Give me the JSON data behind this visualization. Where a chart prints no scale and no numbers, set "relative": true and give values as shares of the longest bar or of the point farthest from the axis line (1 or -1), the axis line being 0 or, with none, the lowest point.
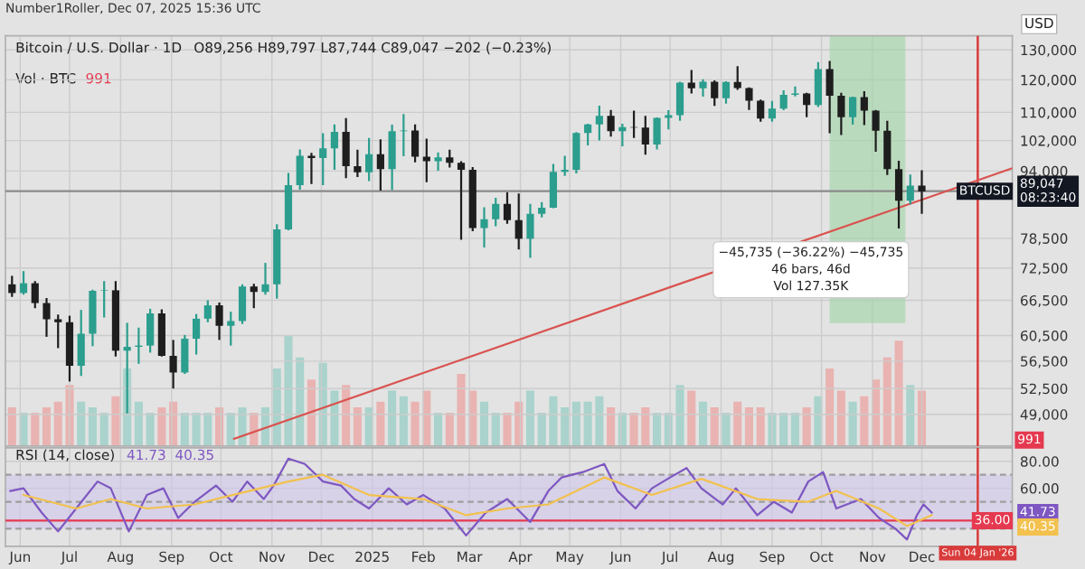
{
  "chart_data": [
    {
      "type": "candlestick",
      "title": "Bitcoin / U.S. Dollar · 1D",
      "subtitle": "O89,256 H89,797 L87,744 C89,047 −202 (−0.23%)",
      "ylabel": "USD",
      "log": true,
      "grid": true,
      "tick_labels": "y",
      "xlim": [
        "2024-05-23",
        "2026-01-25"
      ],
      "xticks": [
        "2024-06-01",
        "2024-07-01",
        "2024-08-01",
        "2024-09-01",
        "2024-10-01",
        "2024-11-01",
        "2024-12-01",
        "2025-01-01",
        "2025-02-01",
        "2025-03-01",
        "2025-04-01",
        "2025-05-01",
        "2025-06-01",
        "2025-07-01",
        "2025-08-01",
        "2025-09-01",
        "2025-10-01",
        "2025-11-01",
        "2025-12-01"
      ],
      "ylim": [
        45000,
        135000
      ],
      "yticks": [
        {
          "value": 49000,
          "label": "49,000"
        },
        {
          "value": 52500,
          "label": "52,500"
        },
        {
          "value": 56500,
          "label": "56,500"
        },
        {
          "value": 60500,
          "label": "60,500"
        },
        {
          "value": 66500,
          "label": "66,500"
        },
        {
          "value": 72500,
          "label": "72,500"
        },
        {
          "value": 78500,
          "label": "78,500"
        },
        {
          "value": 94000,
          "label": "94,000"
        },
        {
          "value": 102000,
          "label": "102,000"
        },
        {
          "value": 110000,
          "label": "110,000"
        },
        {
          "value": 120000,
          "label": "120,000"
        },
        {
          "value": 130000,
          "label": "130,000"
        }
      ],
      "x": [
        "2024-05-27",
        "2024-06-03",
        "2024-06-10",
        "2024-06-17",
        "2024-06-24",
        "2024-07-01",
        "2024-07-08",
        "2024-07-15",
        "2024-07-22",
        "2024-07-29",
        "2024-08-05",
        "2024-08-12",
        "2024-08-19",
        "2024-08-26",
        "2024-09-02",
        "2024-09-09",
        "2024-09-16",
        "2024-09-23",
        "2024-09-30",
        "2024-10-07",
        "2024-10-14",
        "2024-10-21",
        "2024-10-28",
        "2024-11-04",
        "2024-11-11",
        "2024-11-18",
        "2024-11-25",
        "2024-12-02",
        "2024-12-09",
        "2024-12-16",
        "2024-12-23",
        "2024-12-30",
        "2025-01-06",
        "2025-01-13",
        "2025-01-20",
        "2025-01-27",
        "2025-02-03",
        "2025-02-10",
        "2025-02-17",
        "2025-02-24",
        "2025-03-03",
        "2025-03-10",
        "2025-03-17",
        "2025-03-24",
        "2025-03-31",
        "2025-04-07",
        "2025-04-14",
        "2025-04-21",
        "2025-04-28",
        "2025-05-05",
        "2025-05-12",
        "2025-05-19",
        "2025-05-26",
        "2025-06-02",
        "2025-06-09",
        "2025-06-16",
        "2025-06-23",
        "2025-06-30",
        "2025-07-07",
        "2025-07-14",
        "2025-07-21",
        "2025-07-28",
        "2025-08-04",
        "2025-08-11",
        "2025-08-18",
        "2025-08-25",
        "2025-09-01",
        "2025-09-08",
        "2025-09-15",
        "2025-09-22",
        "2025-09-29",
        "2025-10-06",
        "2025-10-13",
        "2025-10-20",
        "2025-10-27",
        "2025-11-03",
        "2025-11-10",
        "2025-11-17",
        "2025-11-24",
        "2025-12-01"
      ],
      "ohlc": [
        [
          69400,
          71000,
          67100,
          67800
        ],
        [
          67800,
          71900,
          67500,
          69600
        ],
        [
          69600,
          70000,
          65100,
          66000
        ],
        [
          66000,
          66900,
          60300,
          63200
        ],
        [
          63200,
          64000,
          58500,
          62700
        ],
        [
          62700,
          63800,
          53500,
          55800
        ],
        [
          55800,
          64800,
          54300,
          60800
        ],
        [
          60800,
          68400,
          58800,
          68200
        ],
        [
          68200,
          70000,
          63500,
          68300
        ],
        [
          68300,
          70000,
          57200,
          58100
        ],
        [
          58100,
          62600,
          49100,
          58700
        ],
        [
          58700,
          61800,
          56100,
          58900
        ],
        [
          58900,
          65000,
          57800,
          64200
        ],
        [
          64200,
          64900,
          57200,
          57300
        ],
        [
          57300,
          59800,
          52500,
          54800
        ],
        [
          54800,
          60600,
          54600,
          60000
        ],
        [
          60000,
          64100,
          57500,
          63300
        ],
        [
          63300,
          66500,
          62700,
          65600
        ],
        [
          65600,
          66100,
          59800,
          62100
        ],
        [
          62100,
          64500,
          58900,
          62900
        ],
        [
          62900,
          69400,
          62400,
          69000
        ],
        [
          69000,
          69500,
          65100,
          68000
        ],
        [
          68000,
          73500,
          67500,
          69400
        ],
        [
          69400,
          81500,
          66800,
          80400
        ],
        [
          80400,
          93500,
          80200,
          90500
        ],
        [
          90500,
          99600,
          89400,
          97900
        ],
        [
          97900,
          98700,
          90800,
          97300
        ],
        [
          97300,
          104000,
          90500,
          99900
        ],
        [
          99900,
          106500,
          94300,
          104400
        ],
        [
          104400,
          108300,
          92200,
          95200
        ],
        [
          95200,
          99500,
          92500,
          93700
        ],
        [
          93700,
          102700,
          91500,
          98300
        ],
        [
          98300,
          102300,
          89200,
          94500
        ],
        [
          94500,
          106400,
          89300,
          104600
        ],
        [
          104600,
          109500,
          97800,
          104800
        ],
        [
          104800,
          106500,
          96200,
          97700
        ],
        [
          97700,
          102500,
          91200,
          96500
        ],
        [
          96500,
          98800,
          94100,
          97500
        ],
        [
          97500,
          99500,
          94900,
          96100
        ],
        [
          96100,
          96500,
          78200,
          94300
        ],
        [
          94300,
          95000,
          80000,
          80700
        ],
        [
          80700,
          85300,
          76600,
          82600
        ],
        [
          82600,
          87500,
          81100,
          86100
        ],
        [
          86100,
          88800,
          81600,
          82400
        ],
        [
          82400,
          88500,
          76200,
          78400
        ],
        [
          78400,
          86100,
          74500,
          83800
        ],
        [
          83800,
          86500,
          83000,
          85200
        ],
        [
          85200,
          95800,
          85100,
          93800
        ],
        [
          93800,
          97900,
          92800,
          94300
        ],
        [
          94300,
          104300,
          93400,
          104100
        ],
        [
          104100,
          106700,
          100700,
          106500
        ],
        [
          106500,
          112000,
          102000,
          109000
        ],
        [
          109000,
          110700,
          103100,
          104600
        ],
        [
          104600,
          106700,
          100400,
          105700
        ],
        [
          105700,
          110500,
          102700,
          105600
        ],
        [
          105600,
          109000,
          98200,
          100900
        ],
        [
          100900,
          108500,
          99600,
          108400
        ],
        [
          108400,
          110600,
          105100,
          109200
        ],
        [
          109200,
          119400,
          107500,
          119100
        ],
        [
          119100,
          123200,
          115700,
          117300
        ],
        [
          117300,
          120200,
          114700,
          119400
        ],
        [
          119400,
          119800,
          111900,
          114200
        ],
        [
          114200,
          119500,
          112600,
          119300
        ],
        [
          119300,
          124500,
          116800,
          117400
        ],
        [
          117400,
          117600,
          110700,
          113500
        ],
        [
          113500,
          113800,
          107300,
          108200
        ],
        [
          108200,
          113400,
          107300,
          111100
        ],
        [
          111100,
          116700,
          110600,
          115300
        ],
        [
          115300,
          117900,
          114800,
          115700
        ],
        [
          115700,
          115900,
          108600,
          112200
        ],
        [
          112200,
          125800,
          111600,
          123500
        ],
        [
          123500,
          126200,
          104000,
          115000
        ],
        [
          115000,
          115900,
          103500,
          108600
        ],
        [
          108600,
          114700,
          106400,
          114600
        ],
        [
          114600,
          116400,
          106300,
          110500
        ],
        [
          110500,
          110700,
          99000,
          104700
        ],
        [
          104700,
          107500,
          93000,
          94500
        ],
        [
          94500,
          96600,
          80600,
          86800
        ],
        [
          86800,
          93100,
          86000,
          90400
        ],
        [
          90400,
          94200,
          83800,
          89000
        ]
      ],
      "colors": [
        "#1e1e1e",
        "#2b9e8e",
        "#1e1e1e",
        "#1e1e1e",
        "#1e1e1e",
        "#1e1e1e",
        "#2b9e8e",
        "#2b9e8e",
        "#2b9e8e",
        "#1e1e1e",
        "#2b9e8e",
        "#2b9e8e",
        "#2b9e8e",
        "#1e1e1e",
        "#1e1e1e",
        "#2b9e8e",
        "#2b9e8e",
        "#2b9e8e",
        "#1e1e1e",
        "#2b9e8e",
        "#2b9e8e",
        "#1e1e1e",
        "#2b9e8e",
        "#2b9e8e",
        "#2b9e8e",
        "#2b9e8e",
        "#1e1e1e",
        "#2b9e8e",
        "#2b9e8e",
        "#1e1e1e",
        "#1e1e1e",
        "#2b9e8e",
        "#1e1e1e",
        "#2b9e8e",
        "#2b9e8e",
        "#1e1e1e",
        "#1e1e1e",
        "#2b9e8e",
        "#1e1e1e",
        "#1e1e1e",
        "#1e1e1e",
        "#2b9e8e",
        "#2b9e8e",
        "#1e1e1e",
        "#1e1e1e",
        "#2b9e8e",
        "#2b9e8e",
        "#2b9e8e",
        "#2b9e8e",
        "#2b9e8e",
        "#2b9e8e",
        "#2b9e8e",
        "#1e1e1e",
        "#2b9e8e",
        "#1e1e1e",
        "#1e1e1e",
        "#2b9e8e",
        "#2b9e8e",
        "#2b9e8e",
        "#1e1e1e",
        "#2b9e8e",
        "#1e1e1e",
        "#2b9e8e",
        "#1e1e1e",
        "#1e1e1e",
        "#1e1e1e",
        "#2b9e8e",
        "#2b9e8e",
        "#2b9e8e",
        "#1e1e1e",
        "#2b9e8e",
        "#1e1e1e",
        "#1e1e1e",
        "#2b9e8e",
        "#1e1e1e",
        "#1e1e1e",
        "#1e1e1e",
        "#1e1e1e",
        "#2b9e8e",
        "#1e1e1e"
      ],
      "series": [
        {
          "type": "line",
          "color": "#d9534f",
          "x": [
            "2024-10-09",
            "2026-01-25"
          ],
          "values": [
            45900,
            94700
          ]
        }
      ],
      "ref_lines": [
        {
          "axis": "y",
          "value": 89047,
          "label": "BTCUSD",
          "color": "#8a8a8a"
        },
        {
          "axis": "x",
          "value": "2026-01-04",
          "color": "#d93a3a"
        }
      ],
      "bands": [
        {
          "axis": "x",
          "from": "2025-10-06",
          "to": "2025-11-21",
          "color": "#9fd3a4"
        }
      ],
      "annotations": [
        "Number1Roller, Dec 07, 2025 15:36 UTC",
        "−45,735 (−36.22%) −45,735\n46 bars, 46d\nVol 127.35K",
        "89,047\n08:23:40"
      ]
    },
    {
      "type": "bar",
      "title": "Vol · BTC",
      "relative": true,
      "tick_labels": false,
      "x": [
        "2024-05-27",
        "2024-06-03",
        "2024-06-10",
        "2024-06-17",
        "2024-06-24",
        "2024-07-01",
        "2024-07-08",
        "2024-07-15",
        "2024-07-22",
        "2024-07-29",
        "2024-08-05",
        "2024-08-12",
        "2024-08-19",
        "2024-08-26",
        "2024-09-02",
        "2024-09-09",
        "2024-09-16",
        "2024-09-23",
        "2024-09-30",
        "2024-10-07",
        "2024-10-14",
        "2024-10-21",
        "2024-10-28",
        "2024-11-04",
        "2024-11-11",
        "2024-11-18",
        "2024-11-25",
        "2024-12-02",
        "2024-12-09",
        "2024-12-16",
        "2024-12-23",
        "2024-12-30",
        "2025-01-06",
        "2025-01-13",
        "2025-01-20",
        "2025-01-27",
        "2025-02-03",
        "2025-02-10",
        "2025-02-17",
        "2025-02-24",
        "2025-03-03",
        "2025-03-10",
        "2025-03-17",
        "2025-03-24",
        "2025-03-31",
        "2025-04-07",
        "2025-04-14",
        "2025-04-21",
        "2025-04-28",
        "2025-05-05",
        "2025-05-12",
        "2025-05-19",
        "2025-05-26",
        "2025-06-02",
        "2025-06-09",
        "2025-06-16",
        "2025-06-23",
        "2025-06-30",
        "2025-07-07",
        "2025-07-14",
        "2025-07-21",
        "2025-07-28",
        "2025-08-04",
        "2025-08-11",
        "2025-08-18",
        "2025-08-25",
        "2025-09-01",
        "2025-09-08",
        "2025-09-15",
        "2025-09-22",
        "2025-09-29",
        "2025-10-06",
        "2025-10-13",
        "2025-10-20",
        "2025-10-27",
        "2025-11-03",
        "2025-11-10",
        "2025-11-17",
        "2025-11-24",
        "2025-12-01"
      ],
      "xlim": [
        "2024-05-23",
        "2026-01-25"
      ],
      "values": [
        0.35,
        0.3,
        0.3,
        0.35,
        0.4,
        0.55,
        0.4,
        0.35,
        0.3,
        0.45,
        0.7,
        0.4,
        0.3,
        0.35,
        0.4,
        0.3,
        0.3,
        0.3,
        0.35,
        0.3,
        0.35,
        0.3,
        0.35,
        0.7,
        1.0,
        0.8,
        0.6,
        0.75,
        0.5,
        0.55,
        0.35,
        0.35,
        0.4,
        0.5,
        0.45,
        0.4,
        0.5,
        0.3,
        0.3,
        0.65,
        0.5,
        0.4,
        0.3,
        0.3,
        0.4,
        0.5,
        0.3,
        0.45,
        0.35,
        0.4,
        0.4,
        0.45,
        0.35,
        0.3,
        0.3,
        0.35,
        0.3,
        0.3,
        0.55,
        0.5,
        0.4,
        0.35,
        0.3,
        0.4,
        0.35,
        0.35,
        0.3,
        0.3,
        0.3,
        0.35,
        0.45,
        0.7,
        0.5,
        0.4,
        0.45,
        0.6,
        0.8,
        0.95,
        0.55,
        0.5
      ],
      "colors": [
        "#e9b3b1",
        "#a9d3cc",
        "#e9b3b1",
        "#e9b3b1",
        "#e9b3b1",
        "#e9b3b1",
        "#a9d3cc",
        "#a9d3cc",
        "#a9d3cc",
        "#e9b3b1",
        "#a9d3cc",
        "#a9d3cc",
        "#a9d3cc",
        "#e9b3b1",
        "#e9b3b1",
        "#a9d3cc",
        "#a9d3cc",
        "#a9d3cc",
        "#e9b3b1",
        "#a9d3cc",
        "#a9d3cc",
        "#e9b3b1",
        "#a9d3cc",
        "#a9d3cc",
        "#a9d3cc",
        "#a9d3cc",
        "#e9b3b1",
        "#a9d3cc",
        "#a9d3cc",
        "#e9b3b1",
        "#e9b3b1",
        "#a9d3cc",
        "#e9b3b1",
        "#a9d3cc",
        "#a9d3cc",
        "#e9b3b1",
        "#e9b3b1",
        "#a9d3cc",
        "#e9b3b1",
        "#e9b3b1",
        "#e9b3b1",
        "#a9d3cc",
        "#a9d3cc",
        "#e9b3b1",
        "#e9b3b1",
        "#a9d3cc",
        "#a9d3cc",
        "#a9d3cc",
        "#a9d3cc",
        "#a9d3cc",
        "#a9d3cc",
        "#a9d3cc",
        "#e9b3b1",
        "#a9d3cc",
        "#e9b3b1",
        "#e9b3b1",
        "#a9d3cc",
        "#a9d3cc",
        "#a9d3cc",
        "#e9b3b1",
        "#a9d3cc",
        "#e9b3b1",
        "#a9d3cc",
        "#e9b3b1",
        "#e9b3b1",
        "#e9b3b1",
        "#a9d3cc",
        "#a9d3cc",
        "#a9d3cc",
        "#e9b3b1",
        "#a9d3cc",
        "#e9b3b1",
        "#e9b3b1",
        "#a9d3cc",
        "#e9b3b1",
        "#e9b3b1",
        "#e9b3b1",
        "#e9b3b1",
        "#a9d3cc",
        "#e9b3b1"
      ],
      "annotations": [
        "991",
        "991"
      ]
    },
    {
      "type": "line",
      "title": "RSI (14, close)",
      "subtitle": "41.73  40.35",
      "grid": true,
      "xlim": [
        "2024-05-23",
        "2026-01-25"
      ],
      "xticks": [
        {
          "value": "2024-06-01",
          "label": "Jun"
        },
        {
          "value": "2024-07-01",
          "label": "Jul"
        },
        {
          "value": "2024-08-01",
          "label": "Aug"
        },
        {
          "value": "2024-09-01",
          "label": "Sep"
        },
        {
          "value": "2024-10-01",
          "label": "Oct"
        },
        {
          "value": "2024-11-01",
          "label": "Nov"
        },
        {
          "value": "2024-12-01",
          "label": "Dec"
        },
        {
          "value": "2025-01-01",
          "label": "2025"
        },
        {
          "value": "2025-02-01",
          "label": "Feb"
        },
        {
          "value": "2025-03-01",
          "label": "Mar"
        },
        {
          "value": "2025-04-01",
          "label": "Apr"
        },
        {
          "value": "2025-05-01",
          "label": "May"
        },
        {
          "value": "2025-06-01",
          "label": "Jun"
        },
        {
          "value": "2025-07-01",
          "label": "Jul"
        },
        {
          "value": "2025-08-01",
          "label": "Aug"
        },
        {
          "value": "2025-09-01",
          "label": "Sep"
        },
        {
          "value": "2025-10-01",
          "label": "Oct"
        },
        {
          "value": "2025-11-01",
          "label": "Nov"
        },
        {
          "value": "2025-12-01",
          "label": "Dec"
        }
      ],
      "ylim": [
        17,
        90
      ],
      "yticks": [
        {
          "value": 60,
          "label": "60.00"
        },
        {
          "value": 80,
          "label": "80.00"
        }
      ],
      "series": [
        {
          "color": "#7e57c2",
          "x": [
            "2024-05-26",
            "2024-06-03",
            "2024-06-14",
            "2024-06-24",
            "2024-07-05",
            "2024-07-18",
            "2024-07-26",
            "2024-08-06",
            "2024-08-17",
            "2024-08-27",
            "2024-09-05",
            "2024-09-15",
            "2024-09-28",
            "2024-10-08",
            "2024-10-17",
            "2024-10-27",
            "2024-11-02",
            "2024-11-11",
            "2024-11-21",
            "2024-12-02",
            "2024-12-13",
            "2024-12-21",
            "2024-12-30",
            "2025-01-11",
            "2025-01-22",
            "2025-02-01",
            "2025-02-14",
            "2025-02-27",
            "2025-03-11",
            "2025-03-24",
            "2025-04-07",
            "2025-04-18",
            "2025-04-26",
            "2025-05-09",
            "2025-05-22",
            "2025-05-30",
            "2025-06-10",
            "2025-06-20",
            "2025-07-01",
            "2025-07-11",
            "2025-07-20",
            "2025-08-02",
            "2025-08-10",
            "2025-08-23",
            "2025-09-02",
            "2025-09-13",
            "2025-09-23",
            "2025-10-02",
            "2025-10-10",
            "2025-10-25",
            "2025-11-05",
            "2025-11-15",
            "2025-11-22",
            "2025-11-28",
            "2025-12-02",
            "2025-12-07"
          ],
          "values": [
            58,
            60,
            42,
            28,
            45,
            65,
            60,
            28,
            55,
            60,
            38,
            50,
            62,
            50,
            65,
            52,
            62,
            82,
            78,
            65,
            62,
            52,
            45,
            60,
            48,
            55,
            45,
            25,
            42,
            52,
            35,
            58,
            68,
            72,
            78,
            58,
            45,
            60,
            68,
            75,
            60,
            48,
            60,
            40,
            50,
            42,
            65,
            72,
            45,
            52,
            38,
            30,
            22,
            40,
            48,
            42
          ]
        },
        {
          "color": "#f2c14e",
          "x": [
            "2024-06-03",
            "2024-07-05",
            "2024-07-26",
            "2024-08-17",
            "2024-09-15",
            "2024-10-08",
            "2024-11-11",
            "2024-12-02",
            "2024-12-30",
            "2025-02-01",
            "2025-02-27",
            "2025-03-24",
            "2025-04-18",
            "2025-05-22",
            "2025-06-20",
            "2025-07-20",
            "2025-08-23",
            "2025-09-23",
            "2025-10-10",
            "2025-11-05",
            "2025-11-22",
            "2025-12-07"
          ],
          "values": [
            55,
            45,
            52,
            45,
            48,
            55,
            65,
            70,
            55,
            52,
            40,
            45,
            48,
            68,
            55,
            67,
            52,
            50,
            58,
            45,
            32,
            40
          ]
        }
      ],
      "ref_lines": [
        {
          "axis": "y",
          "value": 70,
          "color": "#9e9e9e",
          "line_style": "dashed"
        },
        {
          "axis": "y",
          "value": 50,
          "color": "#9e9e9e",
          "line_style": "dashed"
        },
        {
          "axis": "y",
          "value": 30,
          "color": "#9e9e9e",
          "line_style": "dashed"
        },
        {
          "axis": "y",
          "value": 36,
          "label": "36.00",
          "color": "#e53950"
        },
        {
          "axis": "x",
          "value": "2026-01-04",
          "label": "Sun 04 Jan '26",
          "color": "#d93a3a"
        }
      ],
      "bands": [
        {
          "axis": "y",
          "from": 30,
          "to": 70,
          "color": "#cfc6ea"
        }
      ],
      "annotations": [
        "41.73",
        "40.35"
      ]
    }
  ]
}
